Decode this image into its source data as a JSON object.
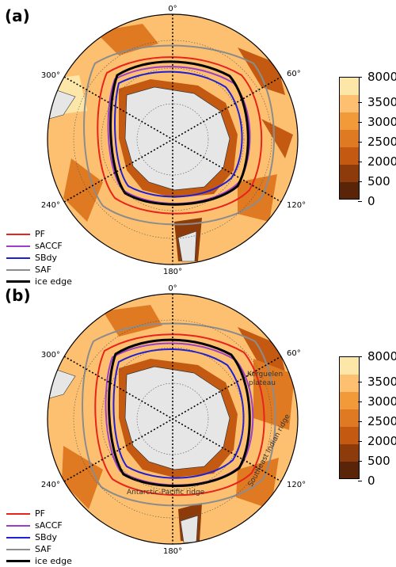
{
  "panels": [
    {
      "label": "(a)",
      "meridians": {
        "top": "0°",
        "right_top": "60°",
        "right_bottom": "120°",
        "bottom": "180°",
        "left_bottom": "240°",
        "left_top": "300°"
      },
      "annotations": []
    },
    {
      "label": "(b)",
      "meridians": {
        "top": "0°",
        "right_top": "60°",
        "right_bottom": "120°",
        "bottom": "180°",
        "left_bottom": "240°",
        "left_top": "300°"
      },
      "annotations": [
        {
          "text": "Kerguelen",
          "id": "kerguelen-1"
        },
        {
          "text": "plateau",
          "id": "kerguelen-2"
        },
        {
          "text": "Southeast Indian ridge",
          "id": "se-indian-ridge"
        },
        {
          "text": "Antarctic-Pacific ridge",
          "id": "antarctic-pacific-ridge"
        }
      ]
    }
  ],
  "legend": [
    {
      "label": "PF",
      "color": "#e8231c"
    },
    {
      "label": "sACCF",
      "color": "#9b3fc8"
    },
    {
      "label": "SBdy",
      "color": "#1f1fd6"
    },
    {
      "label": "SAF",
      "color": "#8c8c8c"
    },
    {
      "label": "ice edge",
      "color": "#000000"
    }
  ],
  "colorbar": {
    "labels": [
      "8000",
      "3500",
      "3000",
      "2500",
      "2000",
      "500",
      "0"
    ],
    "colors": [
      "#fde7a8",
      "#fdc070",
      "#f29a3a",
      "#e07a22",
      "#c45a12",
      "#8e3b0c",
      "#5a2408"
    ]
  },
  "colors": {
    "ocean_shallow": "#fdc070",
    "ocean_deep": "#fde0a0",
    "land": "#e6e6e6",
    "ridge": "#c86a1a"
  }
}
